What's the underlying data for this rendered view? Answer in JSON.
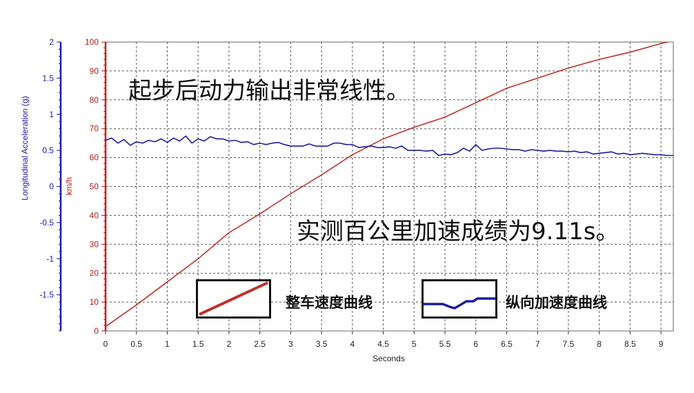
{
  "chart_data": {
    "type": "line",
    "xlabel": "Seconds",
    "y_left_label": "Longitudinal Acceleration (g)",
    "y_right_label": "km/h",
    "xlim": [
      0,
      9.2
    ],
    "y_left_lim": [
      -2,
      2
    ],
    "y_right_lim": [
      0,
      100
    ],
    "x_ticks": [
      "0",
      "0.5",
      "1",
      "1.5",
      "2",
      "2.5",
      "3",
      "3.5",
      "4",
      "4.5",
      "5",
      "5.5",
      "6",
      "6.5",
      "7",
      "7.5",
      "8",
      "8.5",
      "9"
    ],
    "y_left_ticks": [
      "-1.5",
      "-1",
      "-0.5",
      "0",
      "0.5",
      "1",
      "1.5",
      "2"
    ],
    "y_right_ticks": [
      "0",
      "10",
      "20",
      "30",
      "40",
      "50",
      "60",
      "70",
      "80",
      "90",
      "100"
    ],
    "grid": true,
    "series": [
      {
        "name": "整车速度曲线",
        "axis": "right",
        "color": "#c0302c",
        "x": [
          0,
          0.5,
          1,
          1.5,
          2,
          2.5,
          3,
          3.5,
          4,
          4.5,
          5,
          5.5,
          6,
          6.5,
          7,
          7.5,
          8,
          8.5,
          9,
          9.11
        ],
        "values": [
          1.5,
          9,
          17,
          25,
          34,
          40.5,
          47.5,
          54,
          61,
          66.5,
          70.5,
          74,
          79,
          84,
          87.5,
          91,
          94,
          96.5,
          99.5,
          100
        ]
      },
      {
        "name": "纵向加速度曲线",
        "axis": "left",
        "color": "#1c1ca0",
        "x": [
          0,
          0.1,
          0.2,
          0.3,
          0.4,
          0.5,
          0.6,
          0.7,
          0.8,
          0.9,
          1.0,
          1.1,
          1.2,
          1.3,
          1.4,
          1.5,
          1.6,
          1.7,
          1.8,
          1.9,
          2.0,
          2.1,
          2.2,
          2.3,
          2.4,
          2.5,
          2.6,
          2.7,
          2.8,
          2.9,
          3.0,
          3.1,
          3.2,
          3.3,
          3.4,
          3.5,
          3.6,
          3.7,
          3.8,
          3.9,
          4.0,
          4.1,
          4.2,
          4.3,
          4.4,
          4.5,
          4.6,
          4.7,
          4.8,
          4.9,
          5.0,
          5.1,
          5.2,
          5.3,
          5.4,
          5.5,
          5.6,
          5.7,
          5.8,
          5.9,
          6.0,
          6.1,
          6.2,
          6.3,
          6.4,
          6.5,
          6.6,
          6.7,
          6.8,
          6.9,
          7.0,
          7.1,
          7.2,
          7.3,
          7.4,
          7.5,
          7.6,
          7.7,
          7.8,
          7.9,
          8.0,
          8.1,
          8.2,
          8.3,
          8.4,
          8.5,
          8.6,
          8.7,
          8.8,
          8.9,
          9.0,
          9.1,
          9.2
        ],
        "values": [
          0.64,
          0.67,
          0.6,
          0.65,
          0.57,
          0.62,
          0.6,
          0.64,
          0.62,
          0.66,
          0.61,
          0.67,
          0.63,
          0.7,
          0.6,
          0.66,
          0.63,
          0.69,
          0.66,
          0.66,
          0.63,
          0.64,
          0.61,
          0.62,
          0.58,
          0.6,
          0.58,
          0.6,
          0.61,
          0.58,
          0.56,
          0.56,
          0.56,
          0.59,
          0.56,
          0.56,
          0.56,
          0.6,
          0.6,
          0.58,
          0.58,
          0.54,
          0.55,
          0.56,
          0.54,
          0.54,
          0.55,
          0.53,
          0.56,
          0.5,
          0.5,
          0.5,
          0.49,
          0.5,
          0.43,
          0.45,
          0.44,
          0.47,
          0.53,
          0.49,
          0.58,
          0.5,
          0.52,
          0.53,
          0.53,
          0.52,
          0.51,
          0.51,
          0.49,
          0.51,
          0.5,
          0.49,
          0.5,
          0.49,
          0.49,
          0.48,
          0.49,
          0.47,
          0.48,
          0.45,
          0.46,
          0.47,
          0.48,
          0.45,
          0.46,
          0.44,
          0.45,
          0.46,
          0.45,
          0.44,
          0.44,
          0.43,
          0.43
        ]
      }
    ],
    "annotations": {
      "top": "起步后动力输出非常线性。",
      "middle": "实测百公里加速成绩为9.11s。"
    },
    "legend": [
      {
        "label": "整车速度曲线",
        "color": "#c0302c"
      },
      {
        "label": "纵向加速度曲线",
        "color": "#1c1ca0"
      }
    ]
  }
}
